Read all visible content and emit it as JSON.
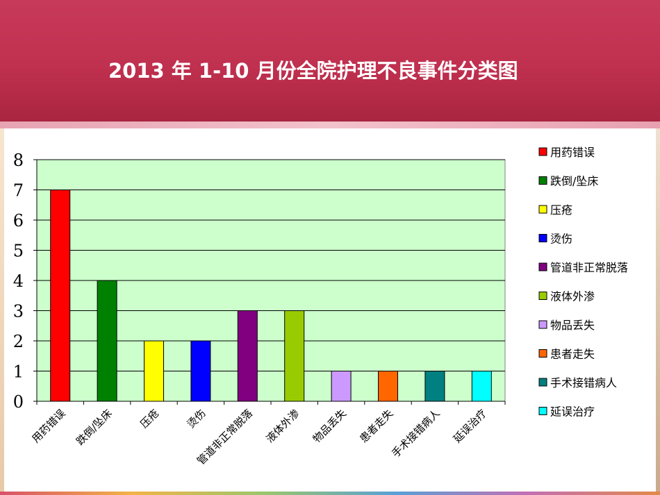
{
  "title": "2013 年 1-10 月份全院护理不良事件分类图",
  "colors": {
    "plot_background": "#ccffcc",
    "gridline": "#000000"
  },
  "chart_data": {
    "type": "bar",
    "title": "2013 年 1-10 月份全院护理不良事件分类图",
    "categories": [
      "用药错误",
      "跌倒/坠床",
      "压疮",
      "烫伤",
      "管道非正常脱落",
      "液体外渗",
      "物品丢失",
      "患者走失",
      "手术接错病人",
      "延误治疗"
    ],
    "values": [
      7,
      4,
      2,
      2,
      3,
      3,
      1,
      1,
      1,
      1
    ],
    "colors": [
      "#ff0000",
      "#008000",
      "#ffff00",
      "#0000ff",
      "#800080",
      "#99cc00",
      "#cc99ff",
      "#ff6600",
      "#008080",
      "#00ffff"
    ],
    "ylim": [
      0,
      8
    ],
    "yticks": [
      0,
      1,
      2,
      3,
      4,
      5,
      6,
      7,
      8
    ],
    "grid": true,
    "legend": {
      "placement": "right",
      "entries": [
        "用药错误",
        "跌倒/坠床",
        "压疮",
        "烫伤",
        "管道非正常脱落",
        "液体外渗",
        "物品丢失",
        "患者走失",
        "手术接错病人",
        "延误治疗"
      ]
    }
  }
}
